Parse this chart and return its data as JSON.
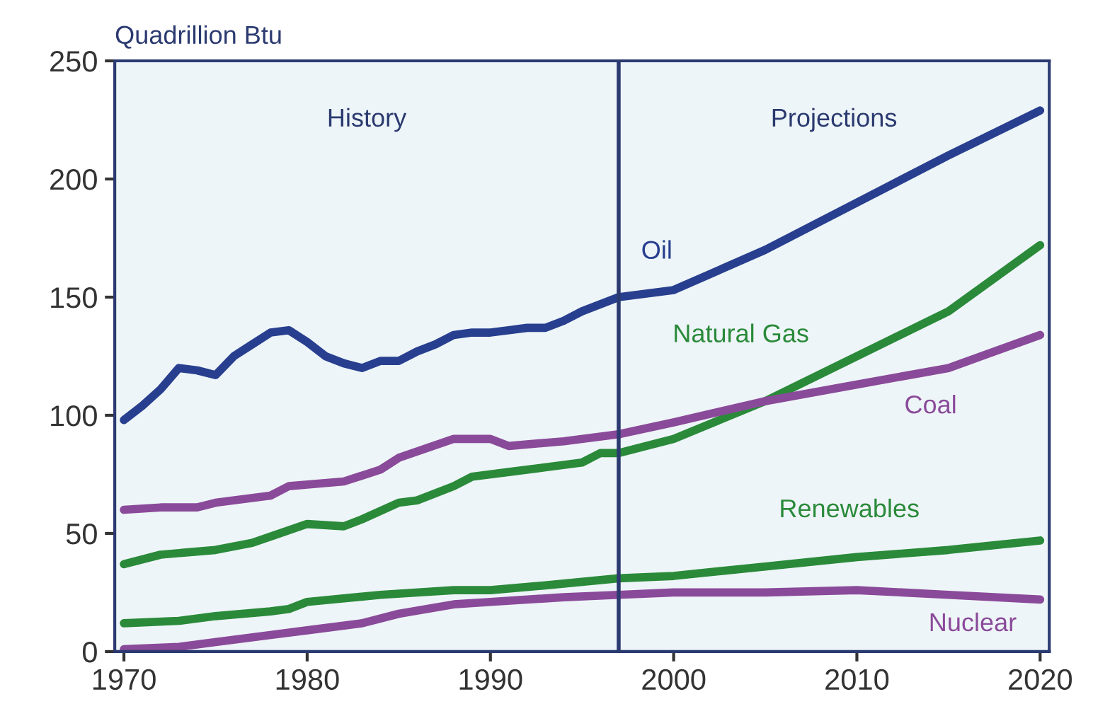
{
  "chart_data": {
    "type": "line",
    "ylabel": "Quadrillion Btu",
    "annotations": [
      "History",
      "Projections"
    ],
    "xlim": [
      1969.5,
      2020.5
    ],
    "xticks": [
      1970,
      1980,
      1990,
      2000,
      2010,
      2020
    ],
    "ylim": [
      0,
      250
    ],
    "yticks": [
      0,
      50,
      100,
      150,
      200,
      250
    ],
    "grid": false,
    "legend": false,
    "marker": "none",
    "line_style": "solid",
    "ref_lines": [
      {
        "axis": "x",
        "value": 1997,
        "color": "#2b3a70"
      }
    ],
    "series": [
      {
        "name": "Oil",
        "color": "#283f8f",
        "x": [
          1970,
          1971,
          1972,
          1973,
          1974,
          1975,
          1976,
          1977,
          1978,
          1979,
          1980,
          1981,
          1982,
          1983,
          1984,
          1985,
          1986,
          1987,
          1988,
          1989,
          1990,
          1991,
          1992,
          1993,
          1994,
          1995,
          1996,
          1997,
          2000,
          2005,
          2010,
          2015,
          2020
        ],
        "values": [
          98,
          104,
          111,
          120,
          119,
          117,
          125,
          130,
          135,
          136,
          131,
          125,
          122,
          120,
          123,
          123,
          127,
          130,
          134,
          135,
          135,
          136,
          137,
          137,
          140,
          144,
          147,
          150,
          153,
          170,
          190,
          210,
          229
        ]
      },
      {
        "name": "Natural Gas",
        "color": "#2a8a3a",
        "x": [
          1970,
          1972,
          1975,
          1977,
          1980,
          1982,
          1983,
          1985,
          1986,
          1988,
          1989,
          1991,
          1993,
          1995,
          1996,
          1997,
          2000,
          2005,
          2010,
          2015,
          2020
        ],
        "values": [
          37,
          41,
          43,
          46,
          54,
          53,
          56,
          63,
          64,
          70,
          74,
          76,
          78,
          80,
          84,
          84,
          90,
          106,
          125,
          144,
          172
        ]
      },
      {
        "name": "Coal",
        "color": "#8a4a9a",
        "x": [
          1970,
          1972,
          1974,
          1975,
          1978,
          1979,
          1982,
          1984,
          1985,
          1988,
          1990,
          1991,
          1994,
          1997,
          2000,
          2005,
          2010,
          2015,
          2020
        ],
        "values": [
          60,
          61,
          61,
          63,
          66,
          70,
          72,
          77,
          82,
          90,
          90,
          87,
          89,
          92,
          97,
          106,
          113,
          120,
          134
        ]
      },
      {
        "name": "Renewables",
        "color": "#2a8a3a",
        "x": [
          1970,
          1973,
          1975,
          1978,
          1979,
          1980,
          1984,
          1988,
          1990,
          1993,
          1997,
          2000,
          2005,
          2010,
          2015,
          2020
        ],
        "values": [
          12,
          13,
          15,
          17,
          18,
          21,
          24,
          26,
          26,
          28,
          31,
          32,
          36,
          40,
          43,
          47
        ]
      },
      {
        "name": "Nuclear",
        "color": "#8a4a9a",
        "x": [
          1970,
          1973,
          1975,
          1978,
          1980,
          1983,
          1985,
          1988,
          1990,
          1994,
          1997,
          2000,
          2005,
          2010,
          2015,
          2020
        ],
        "values": [
          1,
          2,
          4,
          7,
          9,
          12,
          16,
          20,
          21,
          23,
          24,
          25,
          25,
          26,
          24,
          22
        ]
      }
    ]
  }
}
